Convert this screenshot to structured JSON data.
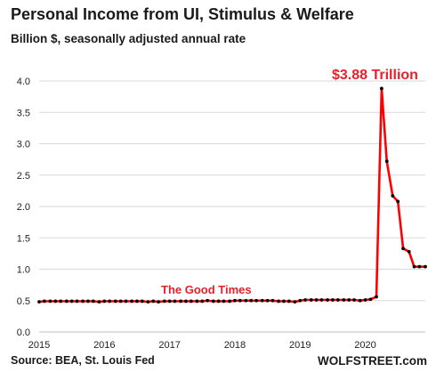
{
  "title": "Personal Income from UI, Stimulus & Welfare",
  "subtitle": "Billion $, seasonally adjusted annual rate",
  "source": "Source: BEA, St. Louis Fed",
  "brand": "WOLFSTREET.com",
  "colors": {
    "line": "#ff0000",
    "marker": "#000000",
    "annotation": "#e8202a",
    "grid": "#d9d9d9"
  },
  "chart_data": {
    "type": "line",
    "ylim": [
      0,
      4.0
    ],
    "yticks": [
      "0.0",
      "0.5",
      "1.0",
      "1.5",
      "2.0",
      "2.5",
      "3.0",
      "3.5",
      "4.0"
    ],
    "xticks": [
      "2015",
      "2016",
      "2017",
      "2018",
      "2019",
      "2020"
    ],
    "xlim": [
      2015,
      2020.92
    ],
    "grid": "horizontal",
    "annotations": [
      {
        "text": "$3.88 Trillion",
        "x": 2020.33,
        "y": 3.88
      },
      {
        "text": "The Good Times",
        "x": 2017.6,
        "y": 0.5
      }
    ],
    "series": [
      {
        "x": [
          2015.0,
          2015.08,
          2015.17,
          2015.25,
          2015.33,
          2015.42,
          2015.5,
          2015.58,
          2015.67,
          2015.75,
          2015.83,
          2015.92,
          2016.0,
          2016.08,
          2016.17,
          2016.25,
          2016.33,
          2016.42,
          2016.5,
          2016.58,
          2016.67,
          2016.75,
          2016.83,
          2016.92,
          2017.0,
          2017.08,
          2017.17,
          2017.25,
          2017.33,
          2017.42,
          2017.5,
          2017.58,
          2017.67,
          2017.75,
          2017.83,
          2017.92,
          2018.0,
          2018.08,
          2018.17,
          2018.25,
          2018.33,
          2018.42,
          2018.5,
          2018.58,
          2018.67,
          2018.75,
          2018.83,
          2018.92,
          2019.0,
          2019.08,
          2019.17,
          2019.25,
          2019.33,
          2019.42,
          2019.5,
          2019.58,
          2019.67,
          2019.75,
          2019.83,
          2019.92,
          2020.0,
          2020.08,
          2020.17,
          2020.25,
          2020.33,
          2020.42,
          2020.5,
          2020.58,
          2020.67,
          2020.75,
          2020.83,
          2020.92
        ],
        "values": [
          0.48,
          0.49,
          0.49,
          0.49,
          0.49,
          0.49,
          0.49,
          0.49,
          0.49,
          0.49,
          0.49,
          0.48,
          0.49,
          0.49,
          0.49,
          0.49,
          0.49,
          0.49,
          0.49,
          0.49,
          0.48,
          0.49,
          0.48,
          0.49,
          0.49,
          0.49,
          0.49,
          0.49,
          0.49,
          0.49,
          0.49,
          0.5,
          0.49,
          0.49,
          0.49,
          0.49,
          0.5,
          0.5,
          0.5,
          0.5,
          0.5,
          0.5,
          0.5,
          0.5,
          0.49,
          0.49,
          0.49,
          0.48,
          0.5,
          0.51,
          0.51,
          0.51,
          0.51,
          0.51,
          0.51,
          0.51,
          0.51,
          0.51,
          0.51,
          0.5,
          0.51,
          0.52,
          0.56,
          3.88,
          2.72,
          2.17,
          2.08,
          1.33,
          1.28,
          1.04,
          1.04,
          1.04
        ]
      }
    ]
  }
}
